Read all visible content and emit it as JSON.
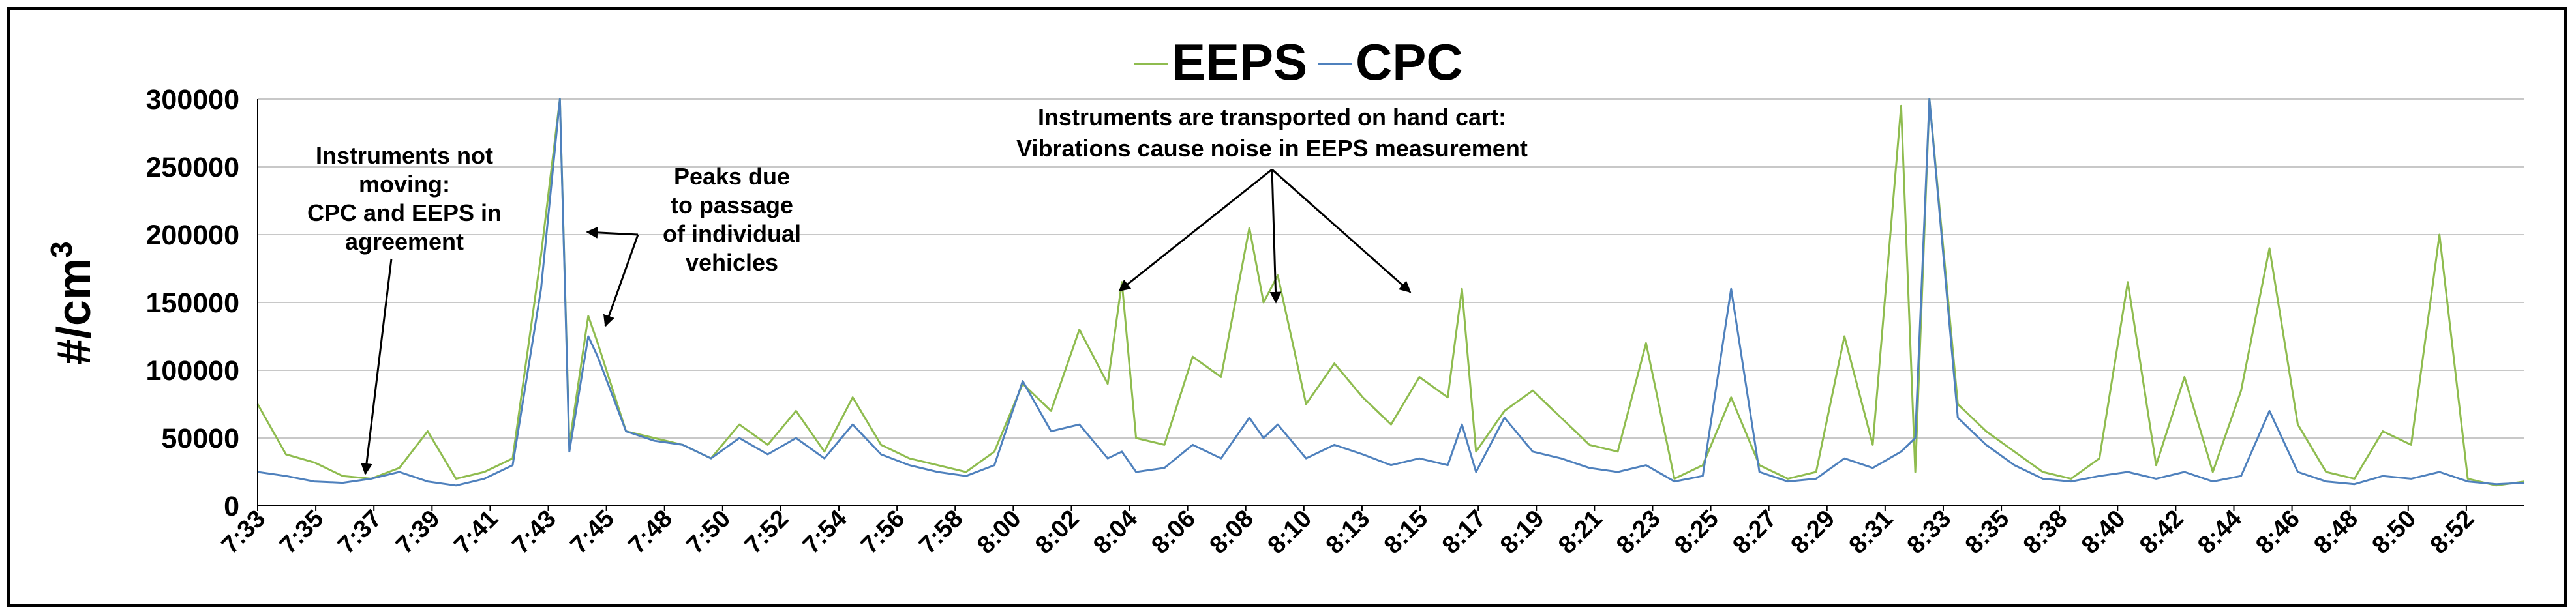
{
  "chart_data": {
    "type": "line",
    "ylabel": "#/cm",
    "ylabel_superscript": "3",
    "ylim": [
      0,
      300000
    ],
    "yticks": [
      0,
      50000,
      100000,
      150000,
      200000,
      250000,
      300000
    ],
    "grid": true,
    "legend_position": "top-center",
    "x_tick_labels": [
      "7:33",
      "7:35",
      "7:37",
      "7:39",
      "7:41",
      "7:43",
      "7:45",
      "7:48",
      "7:50",
      "7:52",
      "7:54",
      "7:56",
      "7:58",
      "8:00",
      "8:02",
      "8:04",
      "8:06",
      "8:08",
      "8:10",
      "8:13",
      "8:15",
      "8:17",
      "8:19",
      "8:21",
      "8:23",
      "8:25",
      "8:27",
      "8:29",
      "8:31",
      "8:33",
      "8:35",
      "8:38",
      "8:40",
      "8:42",
      "8:44",
      "8:46",
      "8:48",
      "8:50",
      "8:52"
    ],
    "series": [
      {
        "name": "EEPS",
        "color": "#8FBC4F",
        "x": [
          "7:33",
          "7:34",
          "7:35",
          "7:36",
          "7:37",
          "7:38",
          "7:39",
          "7:40",
          "7:41",
          "7:42",
          "7:43",
          "7:43:40",
          "7:44",
          "7:44:40",
          "7:45",
          "7:46",
          "7:47",
          "7:48",
          "7:49",
          "7:50",
          "7:51",
          "7:52",
          "7:53",
          "7:54",
          "7:55",
          "7:56",
          "7:57",
          "7:58",
          "7:59",
          "8:00",
          "8:01",
          "8:02",
          "8:03",
          "8:03:30",
          "8:04",
          "8:05",
          "8:06",
          "8:07",
          "8:08",
          "8:08:30",
          "8:09",
          "8:10",
          "8:11",
          "8:12",
          "8:13",
          "8:14",
          "8:15",
          "8:15:30",
          "8:16",
          "8:17",
          "8:18",
          "8:19",
          "8:20",
          "8:21",
          "8:22",
          "8:23",
          "8:24",
          "8:25",
          "8:26",
          "8:27",
          "8:28",
          "8:29",
          "8:30",
          "8:31",
          "8:31:30",
          "8:32",
          "8:33",
          "8:34",
          "8:35",
          "8:36",
          "8:37",
          "8:38",
          "8:39",
          "8:40",
          "8:41",
          "8:42",
          "8:43",
          "8:44",
          "8:45",
          "8:46",
          "8:47",
          "8:48",
          "8:49",
          "8:50",
          "8:51",
          "8:52",
          "8:53"
        ],
        "y": [
          75000,
          38000,
          32000,
          22000,
          20000,
          28000,
          55000,
          20000,
          25000,
          35000,
          185000,
          300000,
          45000,
          140000,
          120000,
          55000,
          50000,
          45000,
          35000,
          60000,
          45000,
          70000,
          40000,
          80000,
          45000,
          35000,
          30000,
          25000,
          40000,
          90000,
          70000,
          130000,
          90000,
          165000,
          50000,
          45000,
          110000,
          95000,
          205000,
          150000,
          170000,
          75000,
          105000,
          80000,
          60000,
          95000,
          80000,
          160000,
          40000,
          70000,
          85000,
          65000,
          45000,
          40000,
          120000,
          20000,
          30000,
          80000,
          30000,
          20000,
          25000,
          125000,
          45000,
          295000,
          25000,
          300000,
          75000,
          55000,
          40000,
          25000,
          20000,
          35000,
          165000,
          30000,
          95000,
          25000,
          85000,
          190000,
          60000,
          25000,
          20000,
          55000,
          45000,
          200000,
          20000,
          15000,
          18000
        ]
      },
      {
        "name": "CPC",
        "color": "#4F81BD",
        "x": [
          "7:33",
          "7:34",
          "7:35",
          "7:36",
          "7:37",
          "7:38",
          "7:39",
          "7:40",
          "7:41",
          "7:42",
          "7:43",
          "7:43:40",
          "7:44",
          "7:44:40",
          "7:45",
          "7:46",
          "7:47",
          "7:48",
          "7:49",
          "7:50",
          "7:51",
          "7:52",
          "7:53",
          "7:54",
          "7:55",
          "7:56",
          "7:57",
          "7:58",
          "7:59",
          "8:00",
          "8:01",
          "8:02",
          "8:03",
          "8:03:30",
          "8:04",
          "8:05",
          "8:06",
          "8:07",
          "8:08",
          "8:08:30",
          "8:09",
          "8:10",
          "8:11",
          "8:12",
          "8:13",
          "8:14",
          "8:15",
          "8:15:30",
          "8:16",
          "8:17",
          "8:18",
          "8:19",
          "8:20",
          "8:21",
          "8:22",
          "8:23",
          "8:24",
          "8:25",
          "8:26",
          "8:27",
          "8:28",
          "8:29",
          "8:30",
          "8:31",
          "8:31:30",
          "8:32",
          "8:33",
          "8:34",
          "8:35",
          "8:36",
          "8:37",
          "8:38",
          "8:39",
          "8:40",
          "8:41",
          "8:42",
          "8:43",
          "8:44",
          "8:45",
          "8:46",
          "8:47",
          "8:48",
          "8:49",
          "8:50",
          "8:51",
          "8:52",
          "8:53"
        ],
        "y": [
          25000,
          22000,
          18000,
          17000,
          20000,
          25000,
          18000,
          15000,
          20000,
          30000,
          160000,
          300000,
          40000,
          125000,
          110000,
          55000,
          48000,
          45000,
          35000,
          50000,
          38000,
          50000,
          35000,
          60000,
          38000,
          30000,
          25000,
          22000,
          30000,
          92000,
          55000,
          60000,
          35000,
          40000,
          25000,
          28000,
          45000,
          35000,
          65000,
          50000,
          60000,
          35000,
          45000,
          38000,
          30000,
          35000,
          30000,
          60000,
          25000,
          65000,
          40000,
          35000,
          28000,
          25000,
          30000,
          18000,
          22000,
          160000,
          25000,
          18000,
          20000,
          35000,
          28000,
          40000,
          50000,
          300000,
          65000,
          45000,
          30000,
          20000,
          18000,
          22000,
          25000,
          20000,
          25000,
          18000,
          22000,
          70000,
          25000,
          18000,
          16000,
          22000,
          20000,
          25000,
          18000,
          16000,
          17000
        ]
      }
    ],
    "annotations": [
      {
        "lines": [
          "Instruments not",
          "moving:",
          "CPC and EEPS in",
          "agreement"
        ]
      },
      {
        "lines": [
          "Peaks due",
          "to passage",
          "of individual",
          "vehicles"
        ]
      },
      {
        "lines": [
          "Instruments are transported on hand cart:",
          "Vibrations cause noise in EEPS measurement"
        ]
      }
    ]
  }
}
